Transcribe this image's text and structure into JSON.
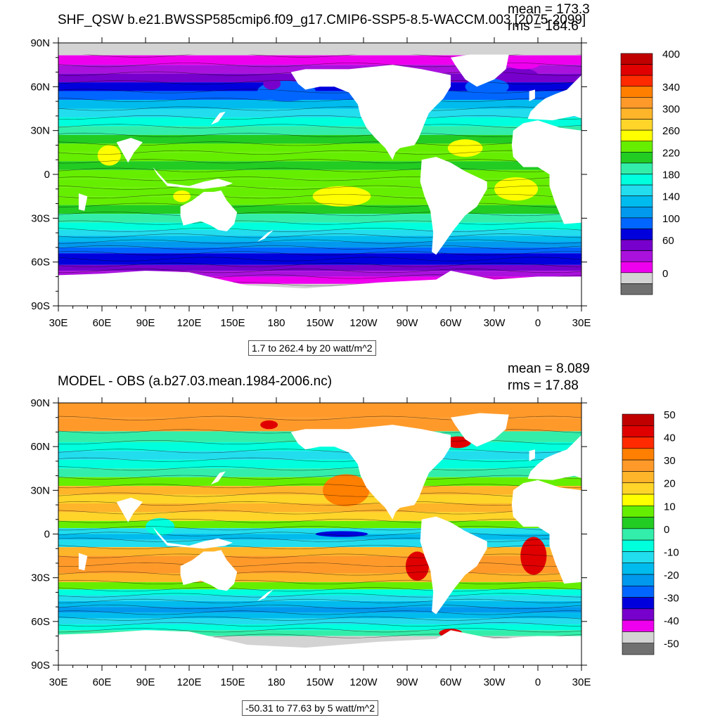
{
  "colors": {
    "land": "#ffffff",
    "missing": "#d3d3d3",
    "frame": "#000000"
  },
  "chart_data": [
    {
      "type": "heatmap",
      "title": "SHF_QSW b.e21.BWSSP585cmip6.f09_g17.CMIP6-SSP5-8.5-WACCM.003 [2075-2099]",
      "mean_label": "mean = 173.3",
      "rms_label": "rms = 184.6",
      "range_note": "1.7 to 262.4 by 20 watt/m^2",
      "xticks": [
        "30E",
        "60E",
        "90E",
        "120E",
        "150E",
        "180",
        "150W",
        "120W",
        "90W",
        "60W",
        "30W",
        "0",
        "30E"
      ],
      "yticks": [
        "90N",
        "60N",
        "30N",
        "0",
        "30S",
        "60S",
        "90S"
      ],
      "colorbar": {
        "labels": [
          "400",
          "340",
          "300",
          "260",
          "220",
          "180",
          "140",
          "100",
          "60",
          "0"
        ],
        "colors": [
          "#c00000",
          "#e00000",
          "#ff2a00",
          "#ff7f00",
          "#ff9a2a",
          "#ffb52a",
          "#ffd52a",
          "#ffff00",
          "#66ee00",
          "#22cc22",
          "#33eeaa",
          "#00ffdd",
          "#22ddee",
          "#00bbee",
          "#0099ee",
          "#0066ff",
          "#0000dd",
          "#7700cc",
          "#aa11dd",
          "#ee00ee",
          "#d3d3d3",
          "#707070"
        ]
      },
      "bands": [
        {
          "lat": 85,
          "color": "#d3d3d3"
        },
        {
          "lat": 78,
          "color": "#ee00ee"
        },
        {
          "lat": 72,
          "color": "#aa11dd"
        },
        {
          "lat": 66,
          "color": "#7700cc"
        },
        {
          "lat": 60,
          "color": "#0000dd"
        },
        {
          "lat": 54,
          "color": "#0066ff"
        },
        {
          "lat": 48,
          "color": "#00bbee"
        },
        {
          "lat": 42,
          "color": "#22ddee"
        },
        {
          "lat": 36,
          "color": "#00ffdd"
        },
        {
          "lat": 30,
          "color": "#33eeaa"
        },
        {
          "lat": 24,
          "color": "#22cc22"
        },
        {
          "lat": 18,
          "color": "#66ee00"
        },
        {
          "lat": 12,
          "color": "#66ee00"
        },
        {
          "lat": 6,
          "color": "#22cc22"
        },
        {
          "lat": 0,
          "color": "#66ee00"
        },
        {
          "lat": -6,
          "color": "#66ee00"
        },
        {
          "lat": -12,
          "color": "#66ee00"
        },
        {
          "lat": -18,
          "color": "#66ee00"
        },
        {
          "lat": -24,
          "color": "#22cc22"
        },
        {
          "lat": -30,
          "color": "#33eeaa"
        },
        {
          "lat": -36,
          "color": "#00ffdd"
        },
        {
          "lat": -40,
          "color": "#22ddee"
        },
        {
          "lat": -44,
          "color": "#00bbee"
        },
        {
          "lat": -48,
          "color": "#0099ee"
        },
        {
          "lat": -52,
          "color": "#0066ff"
        },
        {
          "lat": -56,
          "color": "#0000dd"
        },
        {
          "lat": -60,
          "color": "#0000dd"
        },
        {
          "lat": -64,
          "color": "#7700cc"
        },
        {
          "lat": -68,
          "color": "#aa11dd"
        },
        {
          "lat": -72,
          "color": "#ee00ee"
        },
        {
          "lat": -78,
          "color": "#d3d3d3"
        }
      ],
      "blobs": [
        {
          "lon": 225,
          "lat": -15,
          "rx": 20,
          "ry": 7,
          "color": "#ffff00"
        },
        {
          "lon": 345,
          "lat": -10,
          "rx": 15,
          "ry": 8,
          "color": "#ffff00"
        },
        {
          "lon": 310,
          "lat": 18,
          "rx": 12,
          "ry": 6,
          "color": "#ffff00"
        },
        {
          "lon": 65,
          "lat": 13,
          "rx": 8,
          "ry": 7,
          "color": "#ffff00"
        },
        {
          "lon": 115,
          "lat": -15,
          "rx": 6,
          "ry": 4,
          "color": "#ffff00"
        },
        {
          "lon": 187,
          "lat": 57,
          "rx": 20,
          "ry": 7,
          "color": "#0066ff"
        },
        {
          "lon": 177,
          "lat": 62,
          "rx": 6,
          "ry": 4,
          "color": "#7700cc"
        },
        {
          "lon": 325,
          "lat": 60,
          "rx": 15,
          "ry": 6,
          "color": "#0066ff"
        },
        {
          "lon": 345,
          "lat": 68,
          "rx": 15,
          "ry": 5,
          "color": "#7700cc"
        },
        {
          "lon": 350,
          "lat": 76,
          "rx": 12,
          "ry": 4,
          "color": "#ee00ee"
        }
      ]
    },
    {
      "type": "heatmap",
      "title": "MODEL - OBS (a.b27.03.mean.1984-2006.nc)",
      "mean_label": "mean = 8.089",
      "rms_label": "rms = 17.88",
      "range_note": "-50.31 to 77.63 by 5 watt/m^2",
      "xticks": [
        "30E",
        "60E",
        "90E",
        "120E",
        "150E",
        "180",
        "150W",
        "120W",
        "90W",
        "60W",
        "30W",
        "0",
        "30E"
      ],
      "yticks": [
        "90N",
        "60N",
        "30N",
        "0",
        "30S",
        "60S",
        "90S"
      ],
      "colorbar": {
        "labels": [
          "50",
          "40",
          "30",
          "20",
          "10",
          "0",
          "-10",
          "-20",
          "-30",
          "-40",
          "-50"
        ],
        "colors": [
          "#c00000",
          "#e00000",
          "#ff2a00",
          "#ff7f00",
          "#ff9a2a",
          "#ffb52a",
          "#ffd52a",
          "#ffff00",
          "#66ee00",
          "#22cc22",
          "#33eeaa",
          "#00ffdd",
          "#22ddee",
          "#00bbee",
          "#0099ee",
          "#0066ff",
          "#0000dd",
          "#7700cc",
          "#ee00ee",
          "#d3d3d3",
          "#707070"
        ]
      },
      "bands": [
        {
          "lat": 84,
          "color": "#ff9a2a"
        },
        {
          "lat": 75,
          "color": "#ff9a2a"
        },
        {
          "lat": 66,
          "color": "#33eeaa"
        },
        {
          "lat": 60,
          "color": "#00ffdd"
        },
        {
          "lat": 54,
          "color": "#22ddee"
        },
        {
          "lat": 48,
          "color": "#00ffdd"
        },
        {
          "lat": 42,
          "color": "#33eeaa"
        },
        {
          "lat": 36,
          "color": "#66ee00"
        },
        {
          "lat": 30,
          "color": "#ffb52a"
        },
        {
          "lat": 24,
          "color": "#ffd52a"
        },
        {
          "lat": 18,
          "color": "#ffb52a"
        },
        {
          "lat": 12,
          "color": "#ffd52a"
        },
        {
          "lat": 6,
          "color": "#66ee00"
        },
        {
          "lat": 2,
          "color": "#22ddee"
        },
        {
          "lat": -2,
          "color": "#00bbee"
        },
        {
          "lat": -6,
          "color": "#22ddee"
        },
        {
          "lat": -12,
          "color": "#ffb52a"
        },
        {
          "lat": -18,
          "color": "#ff9a2a"
        },
        {
          "lat": -24,
          "color": "#ff9a2a"
        },
        {
          "lat": -30,
          "color": "#ffb52a"
        },
        {
          "lat": -36,
          "color": "#66ee00"
        },
        {
          "lat": -40,
          "color": "#00ffdd"
        },
        {
          "lat": -44,
          "color": "#22ddee"
        },
        {
          "lat": -48,
          "color": "#00bbee"
        },
        {
          "lat": -52,
          "color": "#0099ee"
        },
        {
          "lat": -56,
          "color": "#00bbee"
        },
        {
          "lat": -60,
          "color": "#22ddee"
        },
        {
          "lat": -64,
          "color": "#00ffdd"
        },
        {
          "lat": -68,
          "color": "#33eeaa"
        },
        {
          "lat": -72,
          "color": "#d3d3d3"
        }
      ],
      "blobs": [
        {
          "lon": 230,
          "lat": 30,
          "rx": 10,
          "ry": 7,
          "color": "#c00000"
        },
        {
          "lon": 228,
          "lat": 30,
          "rx": 16,
          "ry": 11,
          "color": "#ff7f00"
        },
        {
          "lon": 277,
          "lat": -22,
          "rx": 8,
          "ry": 10,
          "color": "#e00000"
        },
        {
          "lon": 357,
          "lat": -15,
          "rx": 9,
          "ry": 13,
          "color": "#e00000"
        },
        {
          "lon": 225,
          "lat": 0,
          "rx": 18,
          "ry": 2,
          "color": "#0000dd"
        },
        {
          "lon": 305,
          "lat": 63,
          "rx": 9,
          "ry": 4,
          "color": "#e00000"
        },
        {
          "lon": 175,
          "lat": 75,
          "rx": 6,
          "ry": 3,
          "color": "#e00000"
        },
        {
          "lon": 300,
          "lat": -68,
          "rx": 8,
          "ry": 3,
          "color": "#e00000"
        },
        {
          "lon": 100,
          "lat": 5,
          "rx": 10,
          "ry": 6,
          "color": "#00ffdd"
        },
        {
          "lon": 280,
          "lat": 60,
          "rx": 10,
          "ry": 5,
          "color": "#0066ff"
        }
      ]
    }
  ]
}
